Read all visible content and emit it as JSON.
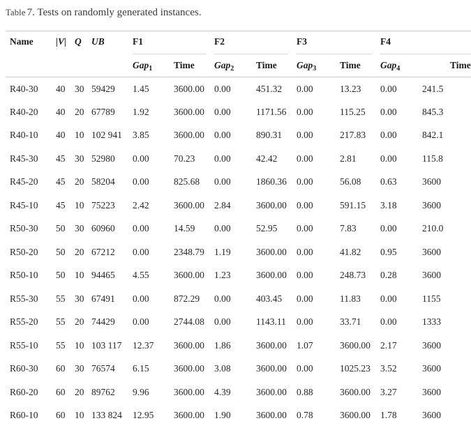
{
  "title": {
    "label": "Table",
    "number": "7.",
    "text": "Tests on randomly generated instances."
  },
  "table": {
    "headers": {
      "name": "Name",
      "v": "|V|",
      "q": "Q",
      "ub": "UB"
    },
    "groups": [
      "F1",
      "F2",
      "F3",
      "F4"
    ],
    "sub": [
      {
        "gap": "Gap",
        "sub": "1",
        "time": "Time"
      },
      {
        "gap": "Gap",
        "sub": "2",
        "time": "Time"
      },
      {
        "gap": "Gap",
        "sub": "3",
        "time": "Time"
      },
      {
        "gap": "Gap",
        "sub": "4",
        "time": "Time"
      }
    ],
    "column_keys": [
      "name",
      "v",
      "q",
      "ub",
      "gap1",
      "time1",
      "gap2",
      "time2",
      "gap3",
      "time3",
      "gap4",
      "time4"
    ],
    "rows": [
      {
        "cells": [
          "R40-30",
          "40",
          "30",
          "59429",
          "1.45",
          "3600.00",
          "0.00",
          "451.32",
          "0.00",
          "13.23",
          "0.00",
          "241.5"
        ]
      },
      {
        "cells": [
          "R40-20",
          "40",
          "20",
          "67789",
          "1.92",
          "3600.00",
          "0.00",
          "1171.56",
          "0.00",
          "115.25",
          "0.00",
          "845.3"
        ]
      },
      {
        "cells": [
          "R40-10",
          "40",
          "10",
          "102 941",
          "3.85",
          "3600.00",
          "0.00",
          "890.31",
          "0.00",
          "217.83",
          "0.00",
          "842.1"
        ]
      },
      {
        "cells": [
          "R45-30",
          "45",
          "30",
          "52980",
          "0.00",
          "70.23",
          "0.00",
          "42.42",
          "0.00",
          "2.81",
          "0.00",
          "115.8"
        ]
      },
      {
        "cells": [
          "R45-20",
          "45",
          "20",
          "58204",
          "0.00",
          "825.68",
          "0.00",
          "1860.36",
          "0.00",
          "56.08",
          "0.63",
          "3600"
        ]
      },
      {
        "cells": [
          "R45-10",
          "45",
          "10",
          "75223",
          "2.42",
          "3600.00",
          "2.84",
          "3600.00",
          "0.00",
          "591.15",
          "3.18",
          "3600"
        ]
      },
      {
        "cells": [
          "R50-30",
          "50",
          "30",
          "60960",
          "0.00",
          "14.59",
          "0.00",
          "52.95",
          "0.00",
          "7.83",
          "0.00",
          "210.0"
        ]
      },
      {
        "cells": [
          "R50-20",
          "50",
          "20",
          "67212",
          "0.00",
          "2348.79",
          "1.19",
          "3600.00",
          "0.00",
          "41.82",
          "0.95",
          "3600"
        ]
      },
      {
        "cells": [
          "R50-10",
          "50",
          "10",
          "94465",
          "4.55",
          "3600.00",
          "1.23",
          "3600.00",
          "0.00",
          "248.73",
          "0.28",
          "3600"
        ]
      },
      {
        "cells": [
          "R55-30",
          "55",
          "30",
          "67491",
          "0.00",
          "872.29",
          "0.00",
          "403.45",
          "0.00",
          "11.83",
          "0.00",
          "1155"
        ]
      },
      {
        "cells": [
          "R55-20",
          "55",
          "20",
          "74429",
          "0.00",
          "2744.08",
          "0.00",
          "1143.11",
          "0.00",
          "33.71",
          "0.00",
          "1333"
        ]
      },
      {
        "cells": [
          "R55-10",
          "55",
          "10",
          "103 117",
          "12.37",
          "3600.00",
          "1.86",
          "3600.00",
          "1.07",
          "3600.00",
          "2.17",
          "3600"
        ]
      },
      {
        "cells": [
          "R60-30",
          "60",
          "30",
          "76574",
          "6.15",
          "3600.00",
          "3.08",
          "3600.00",
          "0.00",
          "1025.23",
          "3.52",
          "3600"
        ]
      },
      {
        "cells": [
          "R60-20",
          "60",
          "20",
          "89762",
          "9.96",
          "3600.00",
          "4.39",
          "3600.00",
          "0.88",
          "3600.00",
          "3.27",
          "3600"
        ]
      },
      {
        "cells": [
          "R60-10",
          "60",
          "10",
          "133 824",
          "12.95",
          "3600.00",
          "1.90",
          "3600.00",
          "0.78",
          "3600.00",
          "1.78",
          "3600"
        ]
      }
    ]
  }
}
